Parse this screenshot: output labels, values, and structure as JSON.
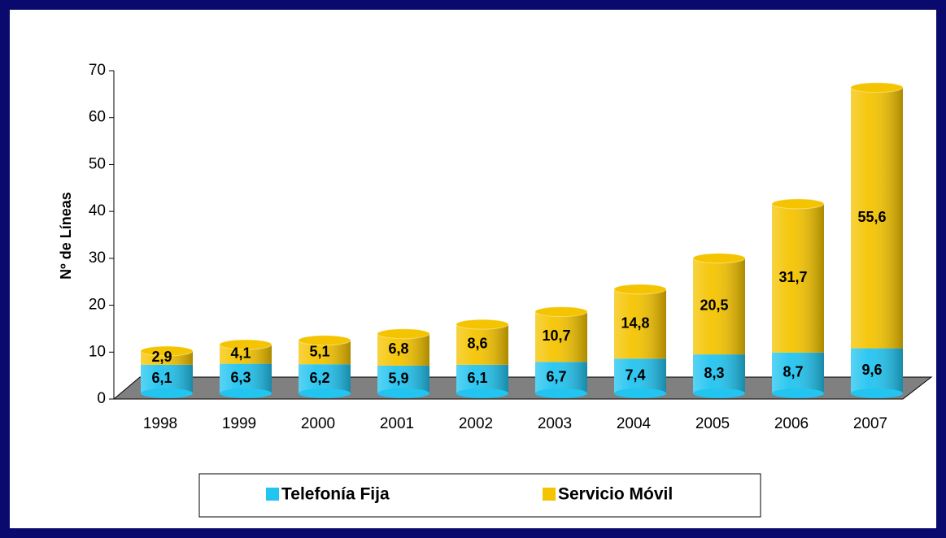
{
  "chart_data": {
    "type": "bar",
    "stacked": true,
    "y_label": "Nº de Líneas",
    "categories": [
      "1998",
      "1999",
      "2000",
      "2001",
      "2002",
      "2003",
      "2004",
      "2005",
      "2006",
      "2007"
    ],
    "series": [
      {
        "name": "Telefonía Fija",
        "color": "#22c4f0",
        "values": [
          6.1,
          6.3,
          6.2,
          5.9,
          6.1,
          6.7,
          7.4,
          8.3,
          8.7,
          9.6
        ],
        "value_labels": [
          "6,1",
          "6,3",
          "6,2",
          "5,9",
          "6,1",
          "6,7",
          "7,4",
          "8,3",
          "8,7",
          "9,6"
        ]
      },
      {
        "name": "Servicio Móvil",
        "color": "#f5c400",
        "values": [
          2.9,
          4.1,
          5.1,
          6.8,
          8.6,
          10.7,
          14.8,
          20.5,
          31.7,
          55.6
        ],
        "value_labels": [
          "2,9",
          "4,1",
          "5,1",
          "6,8",
          "8,6",
          "10,7",
          "14,8",
          "20,5",
          "31,7",
          "55,6"
        ]
      }
    ],
    "ylim": [
      0,
      70
    ],
    "yticks": [
      0,
      10,
      20,
      30,
      40,
      50,
      60,
      70
    ],
    "legend": "bottom"
  }
}
